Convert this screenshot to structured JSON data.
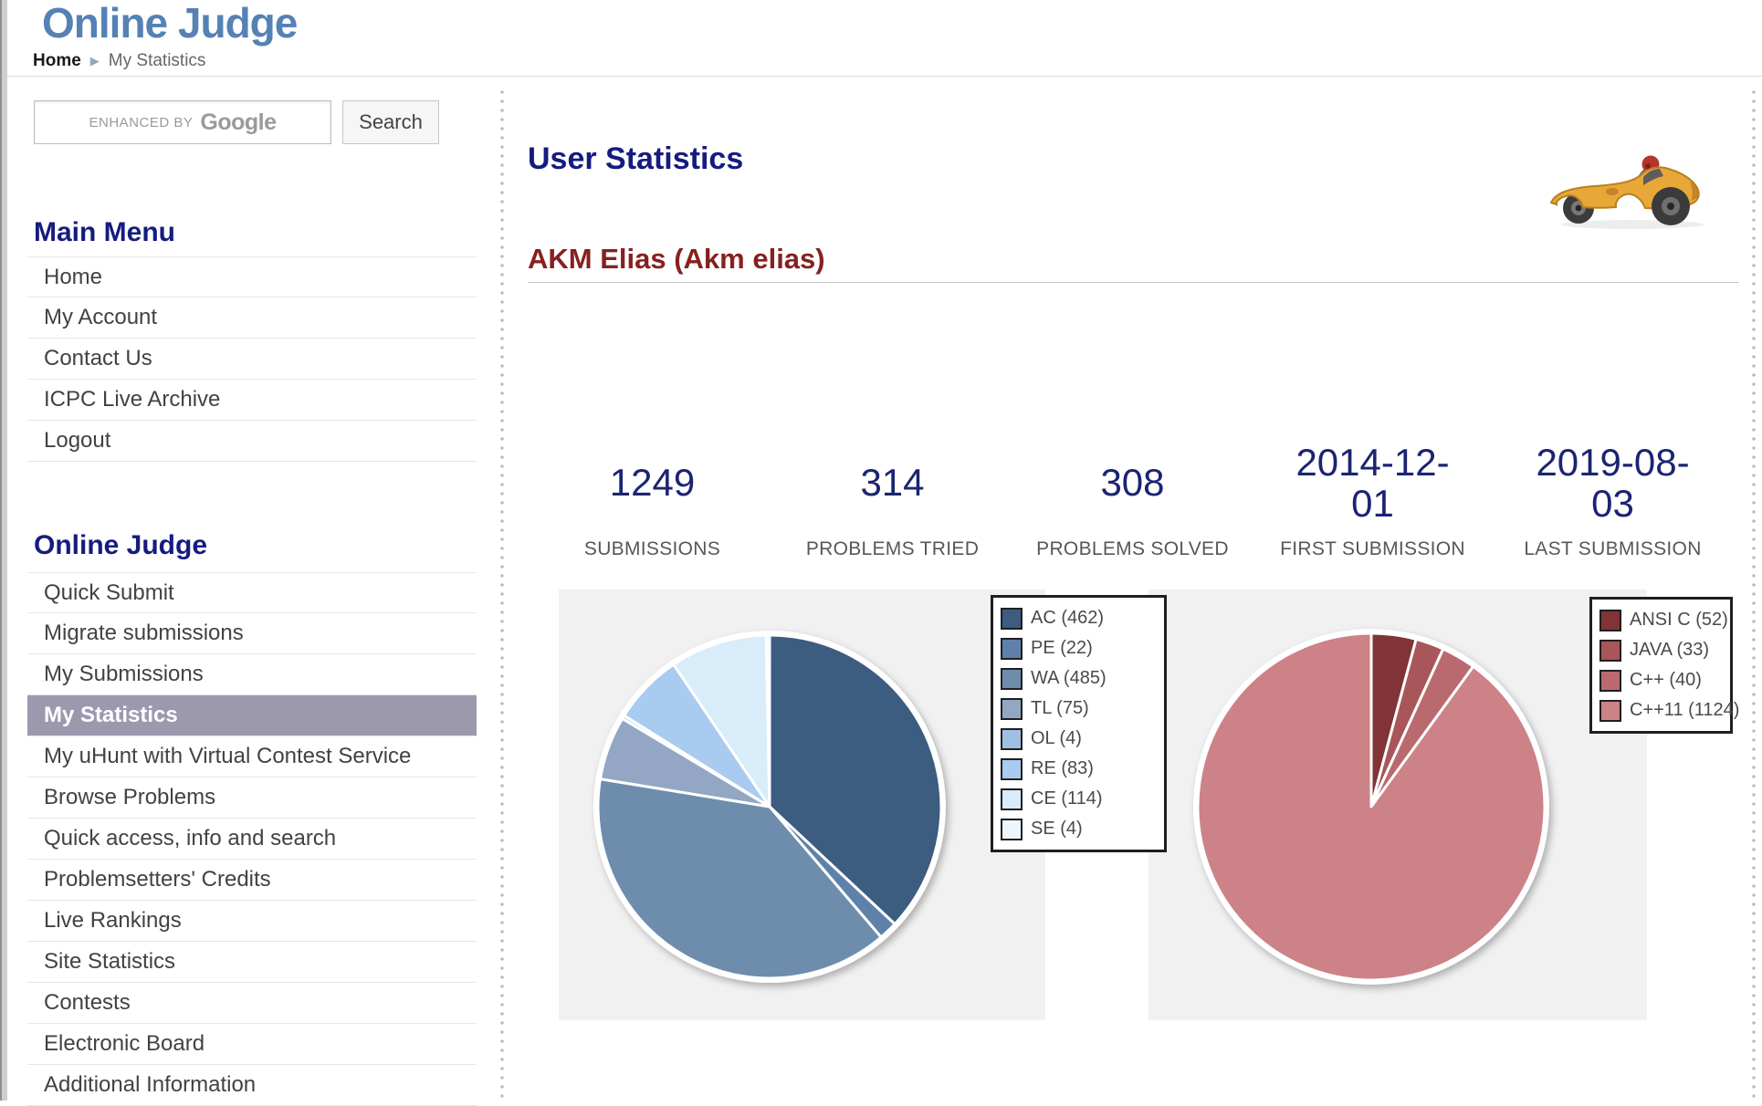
{
  "page": {
    "logo": "Online Judge"
  },
  "breadcrumb": {
    "home": "Home",
    "separator": "▶",
    "current": "My Statistics"
  },
  "search": {
    "watermark_prefix": "ENHANCED BY",
    "watermark_brand": "Google",
    "button_label": "Search"
  },
  "sidebar": {
    "main_menu": {
      "title": "Main Menu",
      "items": [
        "Home",
        "My Account",
        "Contact Us",
        "ICPC Live Archive",
        "Logout"
      ]
    },
    "online_judge": {
      "title": "Online Judge",
      "items": [
        "Quick Submit",
        "Migrate submissions",
        "My Submissions",
        "My Statistics",
        "My uHunt with Virtual Contest Service",
        "Browse Problems",
        "Quick access, info and search",
        "Problemsetters' Credits",
        "Live Rankings",
        "Site Statistics",
        "Contests",
        "Electronic Board",
        "Additional Information"
      ],
      "active_item": "My Statistics"
    }
  },
  "main": {
    "title": "User Statistics",
    "user_name": "AKM Elias (Akm elias)",
    "stats": [
      {
        "value": "1249",
        "label": "SUBMISSIONS"
      },
      {
        "value": "314",
        "label": "PROBLEMS TRIED"
      },
      {
        "value": "308",
        "label": "PROBLEMS SOLVED"
      },
      {
        "value": "2014-12-01",
        "label": "FIRST SUBMISSION"
      },
      {
        "value": "2019-08-03",
        "label": "LAST SUBMISSION"
      }
    ]
  },
  "chart_data": [
    {
      "type": "pie",
      "name": "submission-verdicts",
      "categories": [
        "AC",
        "PE",
        "WA",
        "TL",
        "OL",
        "RE",
        "CE",
        "SE"
      ],
      "values": [
        462,
        22,
        485,
        75,
        4,
        83,
        114,
        4
      ],
      "total": 1249,
      "legend_labels": [
        "AC (462)",
        "PE (22)",
        "WA (485)",
        "TL (75)",
        "OL (4)",
        "RE (83)",
        "CE (114)",
        "SE (4)"
      ],
      "colors": [
        "#3c5c80",
        "#5e81a9",
        "#6e8dac",
        "#93a6c4",
        "#9fc0e2",
        "#a9cbf0",
        "#d8ecfa",
        "#edf6fd"
      ],
      "legend_position": "top-right",
      "start_angle_deg": 0,
      "direction": "clockwise"
    },
    {
      "type": "pie",
      "name": "submission-languages",
      "categories": [
        "ANSI C",
        "JAVA",
        "C++",
        "C++11"
      ],
      "values": [
        52,
        33,
        40,
        1124
      ],
      "total": 1249,
      "legend_labels": [
        "ANSI C (52)",
        "JAVA (33)",
        "C++ (40)",
        "C++11 (1124)"
      ],
      "colors": [
        "#813336",
        "#a9565a",
        "#ba6a6e",
        "#cc8287"
      ],
      "legend_position": "top-right",
      "start_angle_deg": 0,
      "direction": "clockwise"
    }
  ],
  "colors": {
    "heading_navy": "#151c7f",
    "stat_navy": "#1b2472",
    "user_maroon": "#872020",
    "active_item_bg": "#9c99af",
    "chart_block_bg": "#f1f1f2",
    "logo_blue": "#5581b5"
  }
}
